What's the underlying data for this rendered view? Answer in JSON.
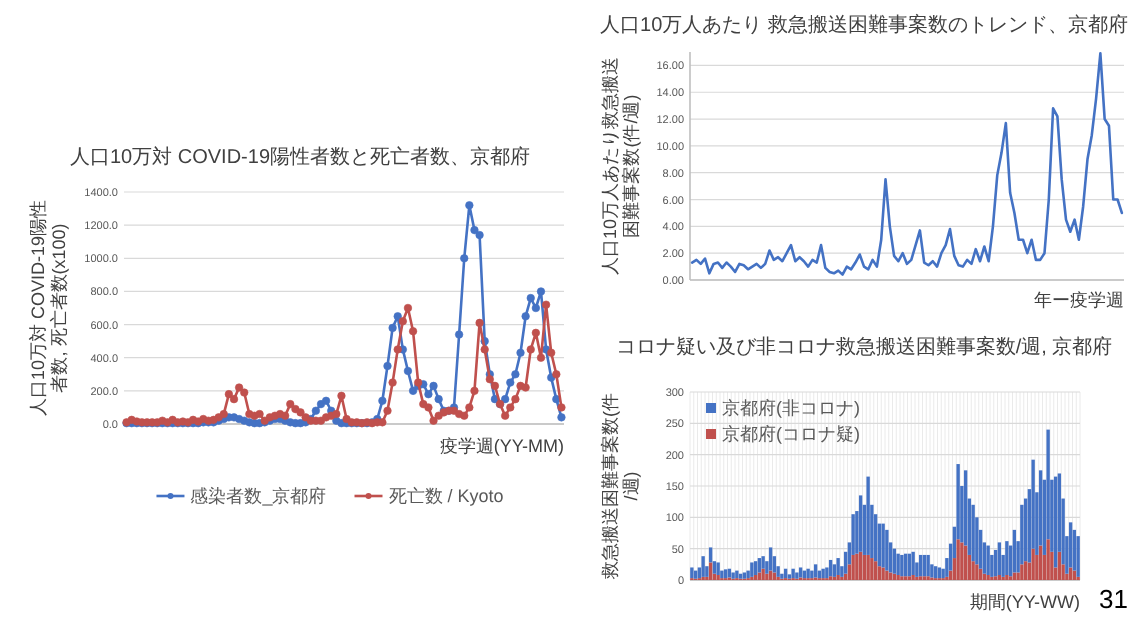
{
  "chart_data": [
    {
      "type": "line",
      "title": "人口10万対 COVID-19陽性者数と死亡者数、京都府",
      "ylabel": "人口10万対 COVID-19陽性者数, 死亡者数(x100)",
      "xlabel": "疫学週(YY-MM)",
      "marker": "circle",
      "grid": "y",
      "legend": "bottom",
      "ylim": [
        0,
        1400
      ],
      "yticks": [
        {
          "value": 0,
          "label": "0.0"
        },
        {
          "value": 200,
          "label": "200.0"
        },
        {
          "value": 400,
          "label": "400.0"
        },
        {
          "value": 600,
          "label": "600.0"
        },
        {
          "value": 800,
          "label": "800.0"
        },
        {
          "value": 1000,
          "label": "1000.0"
        },
        {
          "value": 1200,
          "label": "1200.0"
        },
        {
          "value": 1400,
          "label": "1400.0"
        }
      ],
      "categories": [
        null,
        null,
        null,
        null,
        null,
        null,
        null,
        null,
        null,
        null,
        null,
        null,
        null,
        null,
        null,
        null,
        null,
        null,
        null,
        null,
        null,
        null,
        null,
        null,
        null,
        null,
        null,
        null,
        null,
        null,
        null,
        null,
        null,
        null,
        null,
        null,
        null,
        null,
        null,
        null,
        null,
        null,
        null,
        null,
        null,
        null,
        null,
        null,
        null,
        null,
        null,
        null,
        null,
        null,
        null,
        null,
        null,
        null,
        null,
        null,
        null,
        null,
        null,
        null,
        null,
        null,
        null,
        null,
        null,
        null,
        null,
        null,
        null,
        null,
        null,
        null,
        null,
        null,
        null,
        null,
        null,
        null,
        null,
        null,
        null,
        null
      ],
      "series": [
        {
          "name": "感染者数_京都府",
          "color": "#4472c4",
          "values": [
            5,
            5,
            5,
            5,
            5,
            5,
            5,
            5,
            5,
            5,
            5,
            5,
            5,
            5,
            5,
            10,
            10,
            10,
            20,
            30,
            40,
            40,
            30,
            20,
            10,
            5,
            5,
            10,
            20,
            30,
            30,
            20,
            10,
            5,
            5,
            10,
            30,
            80,
            120,
            140,
            80,
            20,
            5,
            5,
            5,
            5,
            5,
            5,
            10,
            30,
            140,
            350,
            580,
            650,
            450,
            320,
            200,
            230,
            240,
            180,
            230,
            150,
            80,
            80,
            100,
            540,
            1000,
            1320,
            1170,
            1140,
            500,
            300,
            150,
            120,
            150,
            250,
            300,
            430,
            650,
            760,
            700,
            800,
            450,
            280,
            150,
            40
          ]
        },
        {
          "name": "死亡数 / Kyoto",
          "color": "#c0504d",
          "values": [
            10,
            25,
            15,
            10,
            10,
            10,
            10,
            20,
            10,
            25,
            10,
            15,
            10,
            25,
            15,
            30,
            20,
            25,
            40,
            60,
            180,
            150,
            220,
            190,
            60,
            50,
            60,
            20,
            40,
            50,
            60,
            50,
            120,
            90,
            70,
            40,
            20,
            20,
            20,
            40,
            50,
            60,
            170,
            30,
            10,
            10,
            5,
            10,
            5,
            10,
            10,
            80,
            250,
            450,
            620,
            700,
            560,
            250,
            120,
            100,
            20,
            50,
            70,
            80,
            80,
            60,
            50,
            100,
            200,
            610,
            450,
            270,
            230,
            120,
            50,
            100,
            150,
            230,
            220,
            450,
            550,
            400,
            720,
            430,
            300,
            100
          ]
        }
      ]
    },
    {
      "type": "line",
      "title": "人口10万人あたり 救急搬送困難事案数のトレンド、京都府",
      "ylabel": "人口10万人あたり救急搬送困難事案数(件/週)",
      "xlabel": "年ー疫学週",
      "grid": "y",
      "ylim": [
        0,
        17
      ],
      "yticks": [
        {
          "value": 0,
          "label": "0.00"
        },
        {
          "value": 2,
          "label": "2.00"
        },
        {
          "value": 4,
          "label": "4.00"
        },
        {
          "value": 6,
          "label": "6.00"
        },
        {
          "value": 8,
          "label": "8.00"
        },
        {
          "value": 10,
          "label": "10.00"
        },
        {
          "value": 12,
          "label": "12.00"
        },
        {
          "value": 14,
          "label": "14.00"
        },
        {
          "value": 16,
          "label": "16.00"
        }
      ],
      "categories": [
        null,
        null,
        null,
        null,
        null,
        null,
        null,
        null,
        null,
        null,
        null,
        null,
        null,
        null,
        null,
        null,
        null,
        null,
        null,
        null,
        null,
        null,
        null,
        null,
        null,
        null,
        null,
        null,
        null,
        null,
        null,
        null,
        null,
        null,
        null,
        null,
        null,
        null,
        null,
        null,
        null,
        null,
        null,
        null,
        null,
        null,
        null,
        null,
        null,
        null,
        null,
        null,
        null,
        null,
        null,
        null,
        null,
        null,
        null,
        null,
        null,
        null,
        null,
        null,
        null,
        null,
        null,
        null,
        null,
        null,
        null,
        null,
        null,
        null,
        null,
        null,
        null,
        null,
        null,
        null,
        null,
        null,
        null,
        null,
        null,
        null,
        null,
        null,
        null,
        null,
        null,
        null,
        null,
        null,
        null,
        null,
        null,
        null,
        null,
        null,
        null
      ],
      "series": [
        {
          "color": "#4472c4",
          "values": [
            1.3,
            1.5,
            1.2,
            1.6,
            0.5,
            1.2,
            1.3,
            0.9,
            1.3,
            1.0,
            0.6,
            1.2,
            1.1,
            0.8,
            1.0,
            1.2,
            0.9,
            1.2,
            2.2,
            1.5,
            1.7,
            1.4,
            2.0,
            2.6,
            1.4,
            1.7,
            1.4,
            1.0,
            1.5,
            1.3,
            2.6,
            0.9,
            0.6,
            0.5,
            0.7,
            0.4,
            1.0,
            0.8,
            1.3,
            1.9,
            1.0,
            0.8,
            1.5,
            1.0,
            3.0,
            7.5,
            4.0,
            1.8,
            1.4,
            2.0,
            1.2,
            1.5,
            2.6,
            3.7,
            1.3,
            1.1,
            1.4,
            1.0,
            2.0,
            2.6,
            3.8,
            1.8,
            1.1,
            1.0,
            1.5,
            1.2,
            2.3,
            1.4,
            2.5,
            1.4,
            4.0,
            7.8,
            9.5,
            11.7,
            6.5,
            5.0,
            3.0,
            3.0,
            2.0,
            3.0,
            1.5,
            1.5,
            2.0,
            6.0,
            12.8,
            12.2,
            7.5,
            4.5,
            3.6,
            4.5,
            3.0,
            5.5,
            9.0,
            10.8,
            13.5,
            16.9,
            12.0,
            11.5,
            6.0,
            6.0,
            5.0
          ]
        }
      ]
    },
    {
      "type": "bar",
      "stacked": true,
      "title": "コロナ疑い及び非コロナ救急搬送困難事案数/週, 京都府",
      "ylabel": "救急搬送困難事案数(件/週)",
      "xlabel": "期間(YY-WW)",
      "grid": true,
      "legend": "top left",
      "ylim": [
        0,
        300
      ],
      "yticks": [
        0,
        50,
        100,
        150,
        200,
        250,
        300
      ],
      "annotations": [
        "31"
      ],
      "categories": [
        null,
        null,
        null,
        null,
        null,
        null,
        null,
        null,
        null,
        null,
        null,
        null,
        null,
        null,
        null,
        null,
        null,
        null,
        null,
        null,
        null,
        null,
        null,
        null,
        null,
        null,
        null,
        null,
        null,
        null,
        null,
        null,
        null,
        null,
        null,
        null,
        null,
        null,
        null,
        null,
        null,
        null,
        null,
        null,
        null,
        null,
        null,
        null,
        null,
        null,
        null,
        null,
        null,
        null,
        null,
        null,
        null,
        null,
        null,
        null,
        null,
        null,
        null,
        null,
        null,
        null,
        null,
        null,
        null,
        null,
        null,
        null,
        null,
        null,
        null,
        null,
        null,
        null,
        null,
        null,
        null,
        null,
        null,
        null,
        null,
        null,
        null,
        null,
        null,
        null,
        null,
        null,
        null,
        null,
        null,
        null,
        null,
        null,
        null,
        null,
        null,
        null,
        null,
        null
      ],
      "series": [
        {
          "name": "京都府(コロナ疑)",
          "color": "#c0504d",
          "values": [
            3,
            2,
            3,
            5,
            5,
            28,
            10,
            8,
            3,
            3,
            4,
            2,
            3,
            2,
            2,
            3,
            5,
            8,
            12,
            18,
            10,
            15,
            12,
            5,
            2,
            3,
            2,
            3,
            2,
            4,
            3,
            3,
            3,
            4,
            3,
            3,
            3,
            6,
            5,
            8,
            5,
            10,
            25,
            40,
            42,
            45,
            40,
            40,
            35,
            30,
            22,
            20,
            15,
            12,
            10,
            8,
            6,
            6,
            6,
            8,
            5,
            6,
            6,
            6,
            4,
            3,
            3,
            3,
            5,
            15,
            35,
            65,
            60,
            55,
            40,
            30,
            25,
            18,
            10,
            8,
            5,
            6,
            8,
            5,
            8,
            6,
            12,
            12,
            25,
            30,
            28,
            50,
            40,
            55,
            40,
            65,
            45,
            20,
            45,
            25,
            10,
            20,
            15,
            5
          ]
        },
        {
          "name": "京都府(非コロナ)",
          "color": "#4472c4",
          "values": [
            17,
            13,
            17,
            33,
            17,
            24,
            20,
            20,
            12,
            14,
            14,
            10,
            12,
            8,
            10,
            12,
            23,
            22,
            23,
            20,
            20,
            37,
            26,
            17,
            8,
            15,
            7,
            15,
            10,
            16,
            12,
            15,
            12,
            21,
            12,
            15,
            17,
            26,
            20,
            27,
            17,
            35,
            35,
            65,
            68,
            90,
            80,
            125,
            85,
            75,
            68,
            70,
            65,
            48,
            40,
            34,
            34,
            36,
            36,
            37,
            23,
            34,
            34,
            34,
            21,
            19,
            17,
            15,
            30,
            43,
            50,
            120,
            90,
            120,
            90,
            90,
            75,
            62,
            50,
            47,
            35,
            42,
            52,
            35,
            54,
            49,
            68,
            50,
            95,
            100,
            117,
            142,
            100,
            120,
            120,
            175,
            115,
            145,
            125,
            105,
            60,
            72,
            65,
            65
          ]
        }
      ]
    }
  ]
}
